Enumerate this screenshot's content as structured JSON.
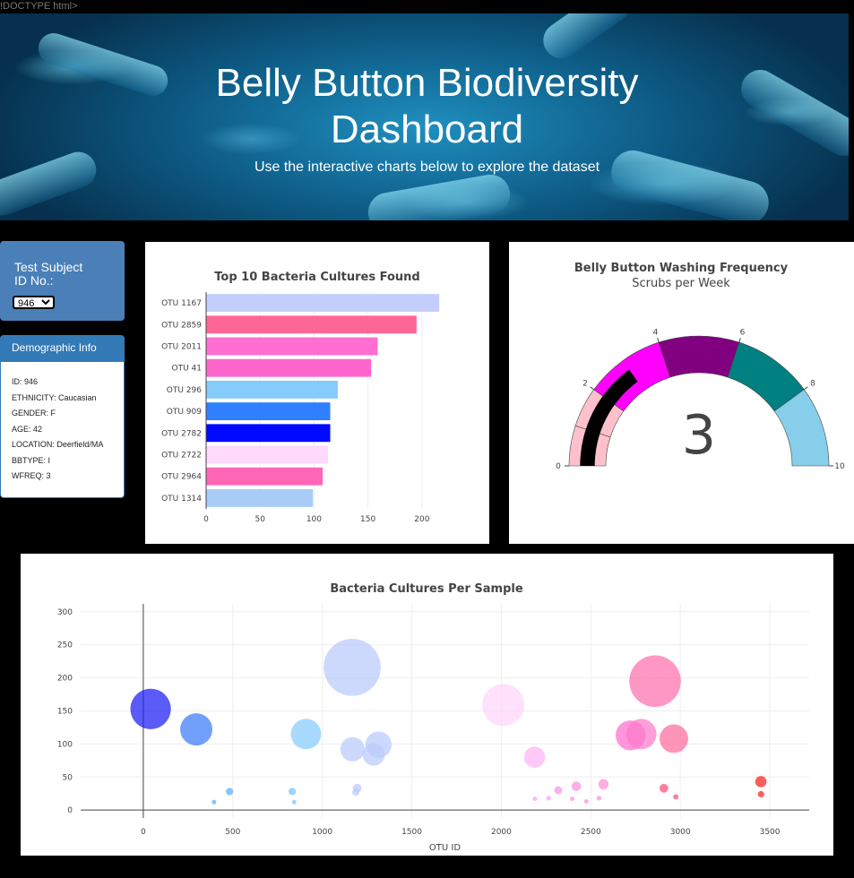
{
  "page": {
    "doctype_text": "!DOCTYPE html>"
  },
  "header": {
    "title_line1": "Belly Button Biodiversity",
    "title_line2": "Dashboard",
    "subtitle": "Use the interactive charts below to explore the dataset"
  },
  "selector": {
    "label_line1": "Test Subject",
    "label_line2": "ID No.:",
    "selected_value": "946"
  },
  "demographics": {
    "heading": "Demographic Info",
    "rows": [
      "ID: 946",
      "ETHNICITY: Caucasian",
      "GENDER: F",
      "AGE: 42",
      "LOCATION: Deerfield/MA",
      "BBTYPE: I",
      "WFREQ: 3"
    ]
  },
  "chart_data": [
    {
      "type": "bar",
      "orientation": "horizontal",
      "title": "Top 10 Bacteria Cultures Found",
      "categories": [
        "OTU 1167",
        "OTU 2859",
        "OTU 2011",
        "OTU 41",
        "OTU 296",
        "OTU 909",
        "OTU 2782",
        "OTU 2722",
        "OTU 2964",
        "OTU 1314"
      ],
      "values": [
        216,
        195,
        159,
        153,
        122,
        115,
        115,
        113,
        108,
        99
      ],
      "colors": [
        "#c3cefc",
        "#ff6698",
        "#ff6ed0",
        "#ff66cc",
        "#85cbfc",
        "#2f7fff",
        "#0008ff",
        "#ffd9fb",
        "#ff66b6",
        "#a9ccf7"
      ],
      "xlim": [
        0,
        230
      ],
      "xticks": [
        0,
        50,
        100,
        150,
        200
      ],
      "grid": true
    },
    {
      "type": "gauge",
      "title": "Belly Button Washing Frequency",
      "subtitle": "Scrubs per Week",
      "value": 3,
      "range": [
        0,
        10
      ],
      "tick_labels": [
        "0",
        "2",
        "4",
        "6",
        "8",
        "10"
      ],
      "steps": [
        {
          "range": [
            0,
            1
          ],
          "color": "#ffc0cb"
        },
        {
          "range": [
            1,
            2
          ],
          "color": "#ffc0cb"
        },
        {
          "range": [
            2,
            4
          ],
          "color": "#ff00ff"
        },
        {
          "range": [
            4,
            6
          ],
          "color": "#800080"
        },
        {
          "range": [
            6,
            8
          ],
          "color": "#008080"
        },
        {
          "range": [
            8,
            10
          ],
          "color": "#87ceeb"
        }
      ],
      "bar_color": "#000000"
    },
    {
      "type": "scatter",
      "subtype": "bubble",
      "title": "Bacteria Cultures Per Sample",
      "xlabel": "OTU ID",
      "ylabel": "",
      "xlim": [
        -350,
        3720
      ],
      "ylim": [
        -12,
        312
      ],
      "xticks": [
        0,
        500,
        1000,
        1500,
        2000,
        2500,
        3000,
        3500
      ],
      "yticks": [
        0,
        50,
        100,
        150,
        200,
        250,
        300
      ],
      "grid": true,
      "points": [
        {
          "x": 41,
          "y": 153,
          "size": 153,
          "color": "#1c1cf5"
        },
        {
          "x": 296,
          "y": 122,
          "size": 122,
          "color": "#3a7cf9"
        },
        {
          "x": 482,
          "y": 28,
          "size": 28,
          "color": "#5aaef5"
        },
        {
          "x": 395,
          "y": 12,
          "size": 12,
          "color": "#5aaef5"
        },
        {
          "x": 832,
          "y": 28,
          "size": 28,
          "color": "#7cc2f7"
        },
        {
          "x": 843,
          "y": 12,
          "size": 12,
          "color": "#7cc2f7"
        },
        {
          "x": 909,
          "y": 115,
          "size": 115,
          "color": "#86ccfc"
        },
        {
          "x": 1167,
          "y": 216,
          "size": 216,
          "color": "#b8cbfc"
        },
        {
          "x": 1169,
          "y": 92,
          "size": 92,
          "color": "#b8cbfc"
        },
        {
          "x": 1314,
          "y": 99,
          "size": 99,
          "color": "#b8cbfc"
        },
        {
          "x": 1287,
          "y": 84,
          "size": 84,
          "color": "#b8cbfc"
        },
        {
          "x": 1195,
          "y": 33,
          "size": 33,
          "color": "#b8cbfc"
        },
        {
          "x": 1187,
          "y": 27,
          "size": 27,
          "color": "#b8cbfc"
        },
        {
          "x": 2011,
          "y": 159,
          "size": 159,
          "color": "#ffd6fa"
        },
        {
          "x": 2186,
          "y": 80,
          "size": 80,
          "color": "#ffb4f4"
        },
        {
          "x": 2188,
          "y": 17,
          "size": 17,
          "color": "#ff9cf1"
        },
        {
          "x": 2264,
          "y": 18,
          "size": 18,
          "color": "#ff9cf1"
        },
        {
          "x": 2318,
          "y": 30,
          "size": 30,
          "color": "#ff8fe8"
        },
        {
          "x": 2396,
          "y": 17,
          "size": 17,
          "color": "#ff8fe8"
        },
        {
          "x": 2419,
          "y": 36,
          "size": 36,
          "color": "#ff8fe0"
        },
        {
          "x": 2475,
          "y": 13,
          "size": 13,
          "color": "#ff8fe0"
        },
        {
          "x": 2546,
          "y": 18,
          "size": 18,
          "color": "#ff8fd8"
        },
        {
          "x": 2571,
          "y": 39,
          "size": 39,
          "color": "#ff8fd4"
        },
        {
          "x": 2722,
          "y": 113,
          "size": 113,
          "color": "#ff6dd0"
        },
        {
          "x": 2782,
          "y": 115,
          "size": 115,
          "color": "#ff7ac8"
        },
        {
          "x": 2859,
          "y": 195,
          "size": 195,
          "color": "#ff6fae"
        },
        {
          "x": 2964,
          "y": 108,
          "size": 108,
          "color": "#ff6b9e"
        },
        {
          "x": 2908,
          "y": 33,
          "size": 33,
          "color": "#ff4b7a"
        },
        {
          "x": 2975,
          "y": 20,
          "size": 20,
          "color": "#ff4b7a"
        },
        {
          "x": 3450,
          "y": 43,
          "size": 43,
          "color": "#ff2020"
        },
        {
          "x": 3451,
          "y": 24,
          "size": 24,
          "color": "#ff2020"
        }
      ]
    }
  ]
}
